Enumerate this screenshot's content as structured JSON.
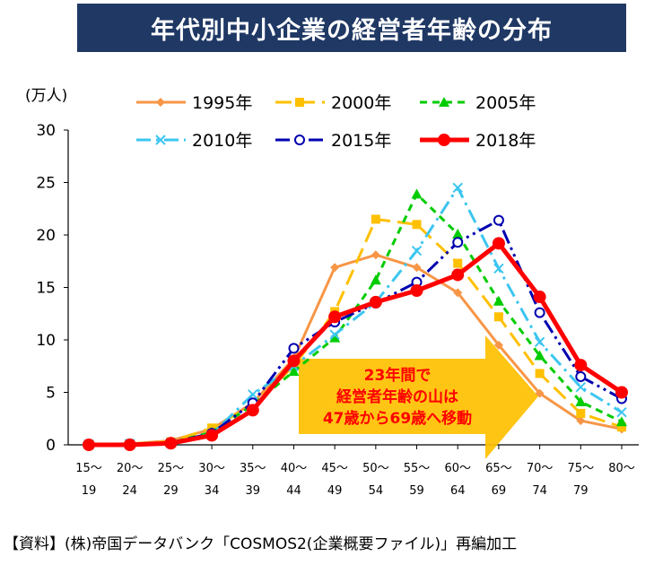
{
  "title": "年代別中小企業の経営者年齢の分布",
  "source_note": "【資料】(株)帝国データバンク「COSMOS2(企業概要ファイル)」再編加工",
  "chart_data": {
    "type": "line",
    "title": "年代別中小企業の経営者年齢の分布",
    "ylabel": "(万人)",
    "xlabel": "",
    "ylim": [
      0,
      30
    ],
    "yticks": [
      0,
      5,
      10,
      15,
      20,
      25,
      30
    ],
    "grid": false,
    "legend_position": "top",
    "categories": [
      {
        "top": "15～",
        "bottom": "19"
      },
      {
        "top": "20～",
        "bottom": "24"
      },
      {
        "top": "25～",
        "bottom": "29"
      },
      {
        "top": "30～",
        "bottom": "34"
      },
      {
        "top": "35～",
        "bottom": "39"
      },
      {
        "top": "40～",
        "bottom": "44"
      },
      {
        "top": "45～",
        "bottom": "49"
      },
      {
        "top": "50～",
        "bottom": "54"
      },
      {
        "top": "55～",
        "bottom": "59"
      },
      {
        "top": "60～",
        "bottom": "64"
      },
      {
        "top": "65～",
        "bottom": "69"
      },
      {
        "top": "70～",
        "bottom": "74"
      },
      {
        "top": "75～",
        "bottom": "79"
      },
      {
        "top": "80～",
        "bottom": ""
      }
    ],
    "series": [
      {
        "name": "1995年",
        "color": "#f79646",
        "dash": "",
        "marker": "diamond",
        "width": 3,
        "values": [
          0.05,
          0.1,
          0.4,
          1.5,
          4.0,
          8.2,
          16.9,
          18.1,
          16.9,
          14.5,
          9.5,
          4.9,
          2.3,
          1.5
        ]
      },
      {
        "name": "2000年",
        "color": "#ffc000",
        "dash": "18 8",
        "marker": "square",
        "width": 3,
        "values": [
          0.05,
          0.1,
          0.3,
          1.6,
          3.8,
          7.5,
          12.7,
          21.5,
          21.0,
          17.3,
          12.2,
          6.8,
          3.0,
          1.7
        ]
      },
      {
        "name": "2005年",
        "color": "#00cc00",
        "dash": "8 6",
        "marker": "triangle",
        "width": 3,
        "values": [
          0.05,
          0.1,
          0.2,
          1.2,
          3.8,
          7.0,
          10.2,
          15.7,
          23.9,
          20.1,
          13.7,
          8.5,
          4.1,
          2.2
        ]
      },
      {
        "name": "2010年",
        "color": "#3cc6f0",
        "dash": "16 6 3 6",
        "marker": "x",
        "width": 3,
        "values": [
          0.05,
          0.1,
          0.2,
          1.0,
          4.8,
          7.5,
          10.5,
          13.6,
          18.5,
          24.5,
          16.8,
          9.8,
          5.5,
          3.1
        ]
      },
      {
        "name": "2015年",
        "color": "#0000b0",
        "dash": "16 5 3 5 3 5",
        "marker": "circle-open",
        "width": 3,
        "values": [
          0.05,
          0.1,
          0.2,
          1.1,
          4.0,
          9.2,
          11.7,
          13.5,
          15.5,
          19.3,
          21.4,
          12.6,
          6.5,
          4.4
        ]
      },
      {
        "name": "2018年",
        "color": "#ff0000",
        "dash": "",
        "marker": "circle-filled",
        "width": 5,
        "values": [
          0.0,
          0.0,
          0.15,
          0.9,
          3.3,
          8.0,
          12.2,
          13.6,
          14.7,
          16.2,
          19.2,
          14.1,
          7.6,
          5.0
        ]
      }
    ],
    "annotation": {
      "lines": [
        "23年間で",
        "経営者年齢の山は",
        "47歳から69歳へ移動"
      ],
      "color": "#ffc000",
      "text_color": "#ff0000"
    }
  }
}
